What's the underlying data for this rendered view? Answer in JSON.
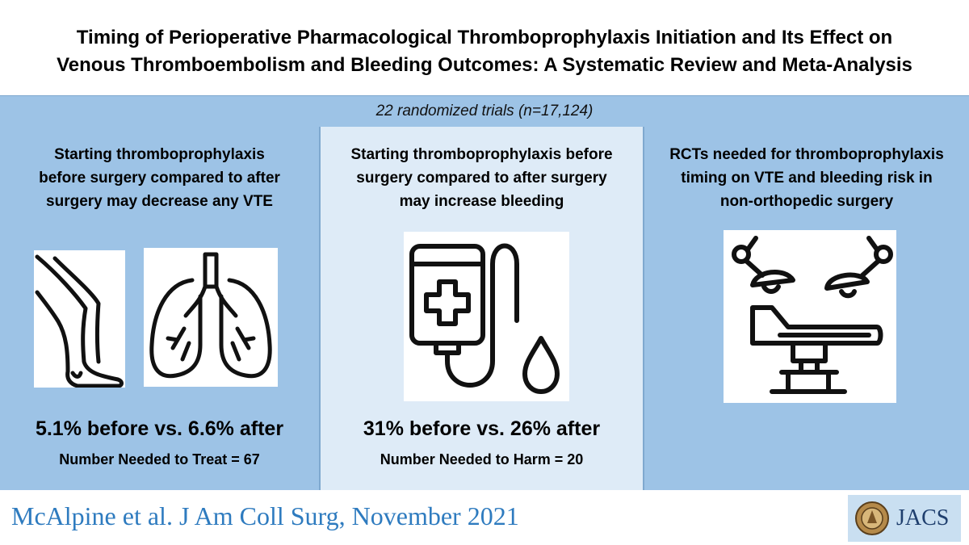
{
  "title": {
    "line1": "Timing of Perioperative Pharmacological Thromboprophylaxis Initiation and Its Effect on",
    "line2": "Venous Thromboembolism and Bleeding Outcomes: A Systematic Review and Meta-Analysis"
  },
  "band": {
    "text": "22 randomized trials (n=17,124)"
  },
  "panels": {
    "vte": {
      "heading_lines": [
        "Starting thromboprophylaxis",
        "before surgery compared to after",
        "surgery may decrease any VTE"
      ],
      "stat": "5.1% before vs. 6.6% after",
      "number_needed": "Number Needed to Treat = 67",
      "icons": [
        "leg-icon",
        "lungs-icon"
      ]
    },
    "bleeding": {
      "heading_lines": [
        "Starting thromboprophylaxis before",
        "surgery compared to after surgery",
        "may increase bleeding"
      ],
      "stat": "31% before vs. 26% after",
      "number_needed": "Number Needed to Harm = 20",
      "icons": [
        "iv-bag-icon"
      ]
    },
    "rcts": {
      "heading_lines": [
        "RCTs needed for thromboprophylaxis",
        "timing on VTE and bleeding risk in",
        "non-orthopedic surgery"
      ],
      "icons": [
        "operating-room-icon"
      ]
    }
  },
  "footer": {
    "citation": "McAlpine et al. J Am Coll Surg, November 2021",
    "journal": "JACS",
    "seal_icon": "college-seal-icon"
  },
  "colors": {
    "panel_blue": "#9dc3e6",
    "panel_light": "#deebf7",
    "citation_blue": "#2e7bbf"
  }
}
